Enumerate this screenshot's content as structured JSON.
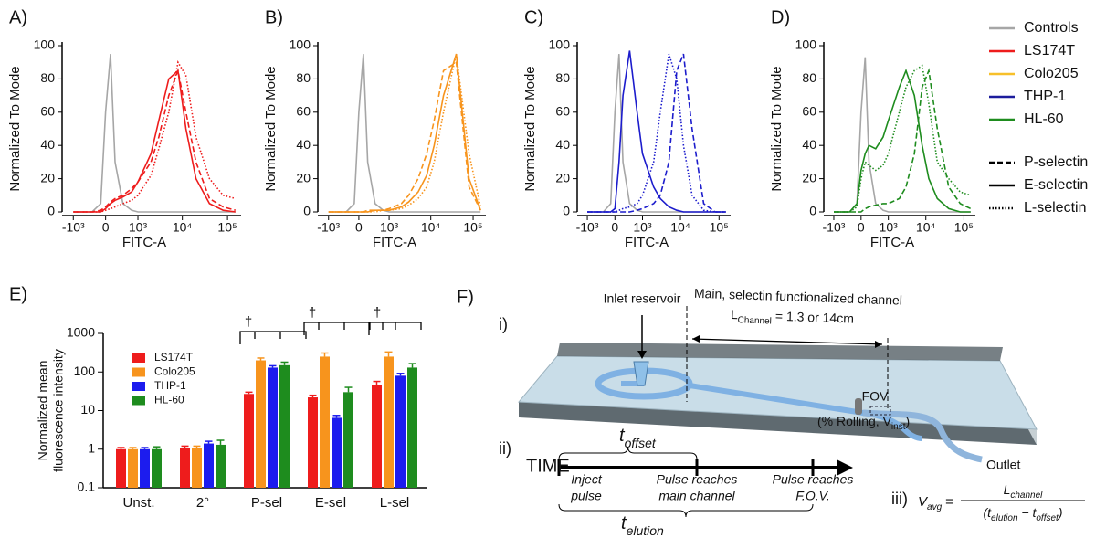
{
  "chart_data": [
    {
      "type": "line",
      "panel_label": "A)",
      "xlabel": "FITC-A",
      "ylabel": "Normalized To Mode",
      "xscale": "biexponential",
      "x": [
        -1000,
        -300,
        -100,
        0,
        100,
        200,
        400,
        700,
        1000,
        2000,
        3000,
        5000,
        8000,
        12000,
        20000,
        40000,
        80000,
        150000
      ],
      "xlim": [
        -1500,
        200000
      ],
      "xticks": [
        {
          "value": -1000,
          "label": "-10³"
        },
        0,
        {
          "value": 1000,
          "label": "10³"
        },
        {
          "value": 10000,
          "label": "10⁴"
        },
        {
          "value": 100000,
          "label": "10⁵"
        }
      ],
      "ylim": [
        0,
        100
      ],
      "yticks": [
        0,
        20,
        40,
        60,
        80,
        100
      ],
      "series": [
        {
          "color": "#a6a6a6",
          "dash": "solid",
          "values": [
            0,
            0,
            5,
            60,
            95,
            30,
            5,
            1,
            0,
            0,
            0,
            0,
            0,
            0,
            0,
            0,
            0,
            0
          ]
        },
        {
          "color": "#ee1c1c",
          "dash": "dashed",
          "values": [
            0,
            0,
            1,
            3,
            6,
            8,
            10,
            14,
            18,
            30,
            45,
            70,
            85,
            60,
            30,
            8,
            3,
            1
          ]
        },
        {
          "color": "#ee1c1c",
          "dash": "solid",
          "values": [
            0,
            0,
            0,
            2,
            5,
            7,
            9,
            12,
            18,
            35,
            55,
            80,
            85,
            50,
            20,
            5,
            1,
            0
          ]
        },
        {
          "color": "#ee1c1c",
          "dash": "dotted",
          "values": [
            0,
            0,
            0,
            1,
            2,
            3,
            5,
            7,
            10,
            22,
            38,
            60,
            90,
            82,
            45,
            20,
            10,
            8
          ]
        }
      ]
    },
    {
      "type": "line",
      "panel_label": "B)",
      "xlabel": "FITC-A",
      "ylabel": "Normalized To Mode",
      "xscale": "biexponential",
      "x": [
        -1000,
        -300,
        -100,
        0,
        100,
        200,
        400,
        700,
        1000,
        2000,
        3000,
        5000,
        8000,
        12000,
        20000,
        40000,
        80000,
        150000
      ],
      "xlim": [
        -1500,
        200000
      ],
      "xticks": [
        {
          "value": -1000,
          "label": "-10³"
        },
        0,
        {
          "value": 1000,
          "label": "10³"
        },
        {
          "value": 10000,
          "label": "10⁴"
        },
        {
          "value": 100000,
          "label": "10⁵"
        }
      ],
      "ylim": [
        0,
        100
      ],
      "yticks": [
        0,
        20,
        40,
        60,
        80,
        100
      ],
      "series": [
        {
          "color": "#a6a6a6",
          "dash": "solid",
          "values": [
            0,
            0,
            5,
            60,
            95,
            30,
            5,
            1,
            0,
            0,
            0,
            0,
            0,
            0,
            0,
            0,
            0,
            0
          ]
        },
        {
          "color": "#f7941d",
          "dash": "dashed",
          "values": [
            0,
            0,
            0,
            0,
            0,
            1,
            1,
            1,
            2,
            5,
            10,
            20,
            35,
            55,
            85,
            90,
            15,
            1
          ]
        },
        {
          "color": "#f7941d",
          "dash": "solid",
          "values": [
            0,
            0,
            0,
            0,
            0,
            0,
            1,
            1,
            1,
            3,
            6,
            12,
            22,
            40,
            70,
            95,
            20,
            1
          ]
        },
        {
          "color": "#f7941d",
          "dash": "dotted",
          "values": [
            0,
            0,
            0,
            0,
            0,
            0,
            0,
            1,
            1,
            2,
            4,
            8,
            15,
            30,
            60,
            95,
            35,
            3
          ]
        }
      ]
    },
    {
      "type": "line",
      "panel_label": "C)",
      "xlabel": "FITC-A",
      "ylabel": "Normalized To Mode",
      "xscale": "biexponential",
      "x": [
        -1000,
        -300,
        -100,
        0,
        100,
        200,
        400,
        700,
        1000,
        2000,
        3000,
        5000,
        8000,
        12000,
        20000,
        40000,
        80000,
        150000
      ],
      "xlim": [
        -1500,
        200000
      ],
      "xticks": [
        {
          "value": -1000,
          "label": "-10³"
        },
        0,
        {
          "value": 1000,
          "label": "10³"
        },
        {
          "value": 10000,
          "label": "10⁴"
        },
        {
          "value": 100000,
          "label": "10⁵"
        }
      ],
      "ylim": [
        0,
        100
      ],
      "yticks": [
        0,
        20,
        40,
        60,
        80,
        100
      ],
      "series": [
        {
          "color": "#a6a6a6",
          "dash": "solid",
          "values": [
            0,
            0,
            5,
            60,
            95,
            30,
            5,
            1,
            0,
            0,
            0,
            0,
            0,
            0,
            0,
            0,
            0,
            0
          ]
        },
        {
          "color": "#1c1ccc",
          "dash": "dashed",
          "values": [
            0,
            0,
            0,
            0,
            0,
            0,
            0,
            1,
            2,
            5,
            10,
            30,
            85,
            95,
            50,
            5,
            0,
            0
          ]
        },
        {
          "color": "#1c1ccc",
          "dash": "solid",
          "values": [
            0,
            0,
            0,
            2,
            30,
            70,
            97,
            60,
            35,
            15,
            8,
            3,
            1,
            0,
            0,
            0,
            0,
            0
          ]
        },
        {
          "color": "#1c1ccc",
          "dash": "dotted",
          "values": [
            0,
            0,
            0,
            0,
            1,
            2,
            3,
            5,
            10,
            30,
            60,
            95,
            80,
            40,
            10,
            1,
            0,
            0
          ]
        }
      ]
    },
    {
      "type": "line",
      "panel_label": "D)",
      "xlabel": "FITC-A",
      "ylabel": "Normalized To Mode",
      "xscale": "biexponential",
      "x": [
        -1000,
        -300,
        -100,
        0,
        100,
        200,
        400,
        700,
        1000,
        2000,
        3000,
        5000,
        8000,
        12000,
        20000,
        40000,
        80000,
        150000
      ],
      "xlim": [
        -1500,
        200000
      ],
      "xticks": [
        {
          "value": -1000,
          "label": "-10³"
        },
        0,
        {
          "value": 1000,
          "label": "10³"
        },
        {
          "value": 10000,
          "label": "10⁴"
        },
        {
          "value": 100000,
          "label": "10⁵"
        }
      ],
      "ylim": [
        0,
        100
      ],
      "yticks": [
        0,
        20,
        40,
        60,
        80,
        100
      ],
      "series": [
        {
          "color": "#a6a6a6",
          "dash": "solid",
          "values": [
            0,
            0,
            5,
            60,
            93,
            30,
            5,
            1,
            0,
            0,
            0,
            0,
            0,
            0,
            0,
            0,
            0,
            0
          ]
        },
        {
          "color": "#1e8c1e",
          "dash": "dashed",
          "values": [
            0,
            0,
            0,
            0,
            2,
            3,
            4,
            5,
            5,
            8,
            15,
            35,
            75,
            85,
            50,
            15,
            5,
            2
          ]
        },
        {
          "color": "#1e8c1e",
          "dash": "solid",
          "values": [
            0,
            0,
            5,
            25,
            35,
            40,
            38,
            45,
            55,
            75,
            85,
            70,
            40,
            20,
            8,
            2,
            0,
            0
          ]
        },
        {
          "color": "#1e8c1e",
          "dash": "dotted",
          "values": [
            0,
            0,
            3,
            20,
            30,
            28,
            25,
            28,
            35,
            60,
            75,
            85,
            88,
            65,
            30,
            20,
            12,
            10
          ]
        }
      ]
    },
    {
      "type": "bar",
      "panel_label": "E)",
      "ylabel": [
        "Normalized mean",
        "fluorescence intensity"
      ],
      "categories": [
        "Unst.",
        "2°",
        "P-sel",
        "E-sel",
        "L-sel"
      ],
      "log_scale": true,
      "ylim": [
        0.1,
        1000
      ],
      "yticks": [
        0.1,
        1,
        10,
        100,
        1000
      ],
      "legend_position": "upper left",
      "series": [
        {
          "name": "LS174T",
          "color": "#ee1c1c",
          "values": [
            1,
            1.1,
            27,
            22,
            45
          ],
          "errors": [
            0.1,
            0.1,
            3,
            3,
            12
          ]
        },
        {
          "name": "Colo205",
          "color": "#f7941d",
          "values": [
            1,
            1.1,
            200,
            250,
            250
          ],
          "errors": [
            0.1,
            0.1,
            30,
            60,
            80
          ]
        },
        {
          "name": "THP-1",
          "color": "#1c1cee",
          "values": [
            1,
            1.4,
            130,
            6.5,
            80
          ],
          "errors": [
            0.1,
            0.2,
            15,
            1,
            12
          ]
        },
        {
          "name": "HL-60",
          "color": "#1e8c1e",
          "values": [
            1,
            1.3,
            150,
            30,
            130
          ],
          "errors": [
            0.15,
            0.4,
            30,
            10,
            35
          ]
        }
      ],
      "annotations": [
        "†",
        "†",
        "†"
      ]
    }
  ],
  "legend": {
    "cell_lines": [
      {
        "name": "Controls",
        "color": "#a6a6a6"
      },
      {
        "name": "LS174T",
        "color": "#ee1c1c"
      },
      {
        "name": "Colo205",
        "color": "#f7c02a"
      },
      {
        "name": "THP-1",
        "color": "#1c1c9c"
      },
      {
        "name": "HL-60",
        "color": "#1e8c1e"
      }
    ],
    "selectins": [
      {
        "name": "P-selectin",
        "dash": "dashed"
      },
      {
        "name": "E-selectin",
        "dash": "solid"
      },
      {
        "name": "L-selectin",
        "dash": "dotted"
      }
    ]
  },
  "diagram": {
    "panel_label": "F)",
    "part_labels": [
      "i)",
      "ii)",
      "iii)"
    ],
    "inlet": "Inlet reservoir",
    "channel": "Main, selectin functionalized channel",
    "length": {
      "symbol": "L",
      "subscript": "Channel",
      "text": " = 1.3 or 14cm"
    },
    "fov": "FOV",
    "fov_metrics": {
      "text": "(% Rolling, V",
      "subscript": "inst",
      "close": ")"
    },
    "outlet": "Outlet",
    "time": "TIME",
    "t_offset": {
      "symbol": "t",
      "subscript": "offset"
    },
    "t_elution": {
      "symbol": "t",
      "subscript": "elution"
    },
    "events": [
      [
        "Inject",
        "pulse"
      ],
      [
        "Pulse reaches",
        "main channel"
      ],
      [
        "Pulse reaches",
        "F.O.V."
      ]
    ],
    "formula": {
      "lhs": "V",
      "lhs_sub": "avg",
      "eq": "=",
      "num": "L",
      "num_sub": "channel",
      "den_open": "(t",
      "den_sub1": "elution",
      "den_mid": " − t",
      "den_sub2": "offset",
      "den_close": ")"
    }
  }
}
